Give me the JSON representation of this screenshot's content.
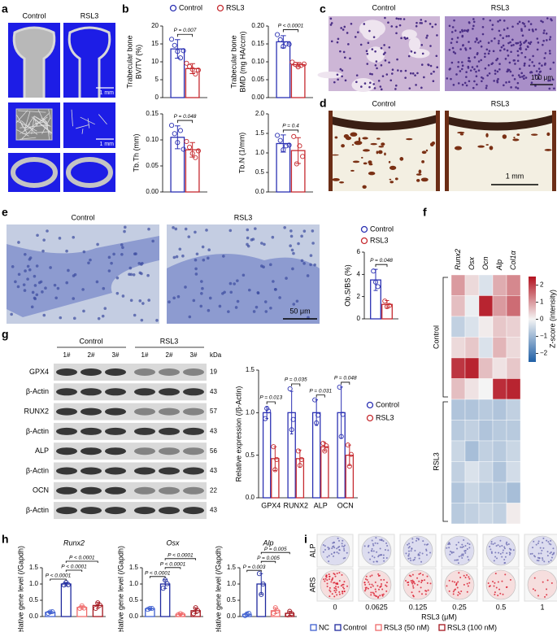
{
  "panels": [
    "a",
    "b",
    "c",
    "d",
    "e",
    "f",
    "g",
    "h",
    "i"
  ],
  "a": {
    "columns": [
      "Control",
      "RSL3"
    ],
    "scale_bars": [
      "1 mm",
      "1 mm"
    ]
  },
  "c": {
    "columns": [
      "Control",
      "RSL3"
    ],
    "scale_bar": "100 μm"
  },
  "d": {
    "columns": [
      "Control",
      "RSL3"
    ],
    "scale_bar": "1 mm"
  },
  "e": {
    "columns": [
      "Control",
      "RSL3"
    ],
    "scale_bar": "50 μm"
  },
  "g_blot": {
    "groups": [
      "Control",
      "RSL3"
    ],
    "lanes": [
      "1#",
      "2#",
      "3#",
      "1#",
      "2#",
      "3#"
    ],
    "kda_label": "kDa",
    "rows": [
      {
        "label": "GPX4",
        "kda": 19
      },
      {
        "label": "β-Actin",
        "kda": 43
      },
      {
        "label": "RUNX2",
        "kda": 57
      },
      {
        "label": "β-Actin",
        "kda": 43
      },
      {
        "label": "ALP",
        "kda": 56
      },
      {
        "label": "β-Actin",
        "kda": 43
      },
      {
        "label": "OCN",
        "kda": 22
      },
      {
        "label": "β-Actin",
        "kda": 43
      }
    ]
  },
  "i": {
    "rows": [
      "ALP",
      "ARS"
    ],
    "concentrations": [
      "0",
      "0.0625",
      "0.125",
      "0.25",
      "0.5",
      "1"
    ],
    "xlabel": "RSL3 (μM)"
  },
  "chart_data": [
    {
      "type": "bar",
      "ylabel": [
        "Trabecular bone",
        "BV/TV (%)"
      ],
      "ylim": [
        0,
        20
      ],
      "yticks": [
        0,
        5,
        10,
        15,
        20
      ],
      "series": [
        {
          "name": "Control",
          "color": "#2b31b3",
          "values": [
            13.6
          ],
          "errors": [
            2.6
          ],
          "points": [
            [
              16.3,
              14.6,
              12.9,
              11.1,
              13.1
            ]
          ]
        },
        {
          "name": "RSL3",
          "color": "#c62a2f",
          "values": [
            8.1
          ],
          "errors": [
            1.4
          ],
          "points": [
            [
              9.6,
              8.7,
              7.9,
              6.6,
              7.7
            ]
          ]
        }
      ],
      "annotations": [
        "P = 0.007"
      ]
    },
    {
      "type": "bar",
      "ylabel": [
        "Trabecular bone",
        "BMD (mg HA/ccm)"
      ],
      "ylim": [
        0,
        0.2
      ],
      "yticks": [
        {
          "value": 0,
          "label": "0.00"
        },
        0.05,
        {
          "value": 0.1,
          "label": "0.10"
        },
        0.15,
        {
          "value": 0.2,
          "label": "0.20"
        }
      ],
      "series": [
        {
          "color": "#2b31b3",
          "values": [
            0.156
          ],
          "errors": [
            0.017
          ],
          "points": [
            [
              0.176,
              0.162,
              0.143,
              0.15,
              0.149
            ]
          ]
        },
        {
          "color": "#c62a2f",
          "values": [
            0.092
          ],
          "errors": [
            0.006
          ],
          "points": [
            [
              0.099,
              0.093,
              0.086,
              0.09,
              0.094
            ]
          ]
        }
      ],
      "annotations": [
        "P < 0.0001"
      ]
    },
    {
      "type": "bar",
      "ylabel": [
        "Tb.Th (mm)"
      ],
      "ylim": [
        0,
        0.15
      ],
      "yticks": [
        {
          "value": 0,
          "label": "0.00"
        },
        0.05,
        {
          "value": 0.1,
          "label": "0.10"
        },
        0.15
      ],
      "series": [
        {
          "color": "#2b31b3",
          "values": [
            0.105
          ],
          "errors": [
            0.022
          ],
          "points": [
            [
              0.128,
              0.112,
              0.095,
              0.118,
              0.082
            ]
          ]
        },
        {
          "color": "#c62a2f",
          "values": [
            0.081
          ],
          "errors": [
            0.014
          ],
          "points": [
            [
              0.097,
              0.086,
              0.074,
              0.066,
              0.079
            ]
          ]
        }
      ],
      "annotations": [
        "P = 0.048"
      ]
    },
    {
      "type": "bar",
      "ylabel": [
        "Tb.N (1/mm)"
      ],
      "ylim": [
        0,
        2
      ],
      "yticks": [
        {
          "value": 0,
          "label": "0.0"
        },
        0.5,
        {
          "value": 1,
          "label": "1.0"
        },
        1.5,
        {
          "value": 2,
          "label": "2.0"
        }
      ],
      "series": [
        {
          "color": "#2b31b3",
          "values": [
            1.24
          ],
          "errors": [
            0.22
          ],
          "points": [
            [
              1.45,
              1.32,
              1.08,
              1.18,
              1.2
            ]
          ]
        },
        {
          "color": "#c62a2f",
          "values": [
            1.06
          ],
          "errors": [
            0.33
          ],
          "points": [
            [
              1.42,
              0.72,
              1.18,
              0.91
            ]
          ]
        }
      ],
      "annotations": [
        "P = 0.4"
      ]
    },
    {
      "type": "bar",
      "ylabel": [
        "Ob.S/BS (%)"
      ],
      "ylim": [
        0,
        6
      ],
      "yticks": [
        0,
        2,
        4,
        6
      ],
      "series": [
        {
          "name": "Control",
          "color": "#2b31b3",
          "values": [
            3.5
          ],
          "errors": [
            0.95
          ],
          "points": [
            [
              4.3,
              3.3,
              2.9
            ]
          ]
        },
        {
          "name": "RSL3",
          "color": "#c62a2f",
          "values": [
            1.3
          ],
          "errors": [
            0.35
          ],
          "points": [
            [
              1.6,
              1.1,
              1.2
            ]
          ]
        }
      ],
      "annotations": [
        "P = 0.048"
      ]
    },
    {
      "type": "heatmap",
      "columns": [
        "Runx2",
        "Osx",
        "Ocn",
        "Alp",
        "Col1α"
      ],
      "groups": [
        {
          "name": "Control",
          "values": [
            [
              1.0,
              0.3,
              -0.3,
              0.8,
              1.2
            ],
            [
              0.6,
              -0.1,
              2.3,
              1.0,
              1.5
            ],
            [
              -0.6,
              -0.3,
              0.1,
              0.5,
              0.4
            ],
            [
              0.3,
              0.5,
              -0.3,
              0.7,
              0.3
            ],
            [
              2.1,
              2.3,
              0.6,
              0.2,
              0.5
            ],
            [
              0.6,
              0.2,
              0.0,
              2.2,
              2.3
            ]
          ]
        },
        {
          "name": "RSL3",
          "values": [
            [
              -0.8,
              -0.8,
              -0.7,
              -0.8,
              -0.6
            ],
            [
              -0.7,
              -0.6,
              -0.8,
              -0.7,
              -0.7
            ],
            [
              -0.5,
              -0.9,
              -0.6,
              -0.7,
              -0.5
            ],
            [
              -0.6,
              -0.3,
              -0.5,
              -0.8,
              -0.4
            ],
            [
              -0.8,
              -0.5,
              -0.7,
              -0.7,
              -0.9
            ],
            [
              -0.7,
              -0.6,
              -0.5,
              -0.6,
              0.1
            ]
          ]
        }
      ],
      "zlim": [
        -2.5,
        2.5
      ],
      "zticks": [
        2,
        1,
        0,
        {
          "value": -1,
          "label": "−1"
        },
        {
          "value": -2,
          "label": "−2"
        }
      ],
      "zlabel": "Z-score (intensity)",
      "colormap": [
        "#1f5fa6",
        "#f4f4f4",
        "#b3121f"
      ]
    },
    {
      "type": "bar",
      "ylabel": [
        "Relative expression (/β-Actin)"
      ],
      "categories": [
        "GPX4",
        "RUNX2",
        "ALP",
        "OCN"
      ],
      "ylim": [
        0,
        1.5
      ],
      "yticks": [
        {
          "value": 0,
          "label": "0.0"
        },
        0.5,
        {
          "value": 1,
          "label": "1.0"
        },
        1.5
      ],
      "series": [
        {
          "name": "Control",
          "color": "#2b31b3",
          "values": [
            1,
            1,
            1,
            1
          ],
          "errors": [
            0.07,
            0.25,
            0.15,
            0.3
          ],
          "points": [
            [
              0.93,
              1.05,
              1.02
            ],
            [
              1.28,
              0.8,
              0.92
            ],
            [
              1.15,
              0.88,
              0.97
            ],
            [
              1.3,
              0.72,
              0.98
            ]
          ]
        },
        {
          "name": "RSL3",
          "color": "#c62a2f",
          "values": [
            0.46,
            0.46,
            0.6,
            0.5
          ],
          "errors": [
            0.14,
            0.1,
            0.05,
            0.12
          ],
          "points": [
            [
              0.6,
              0.33,
              0.45
            ],
            [
              0.55,
              0.38,
              0.45
            ],
            [
              0.64,
              0.55,
              0.61
            ],
            [
              0.62,
              0.37,
              0.51
            ]
          ]
        }
      ],
      "annotations": [
        "P = 0.013",
        "P = 0.035",
        "P = 0.031",
        "P = 0.048"
      ]
    },
    {
      "type": "bar",
      "title": "Runx2",
      "ylabel": [
        "Relative gene level (/Gapdh)"
      ],
      "ylim": [
        0,
        1.5
      ],
      "yticks": [
        {
          "value": 0,
          "label": "0.0"
        },
        0.5,
        {
          "value": 1,
          "label": "1.0"
        },
        1.5
      ],
      "series": [
        {
          "colors": [
            "#4060d0",
            "#1f2a9e",
            "#ef6a6a",
            "#a3161e"
          ],
          "values": [
            0.13,
            1.0,
            0.28,
            0.34
          ],
          "errors": [
            0.03,
            0.05,
            0.05,
            0.09
          ],
          "points": [
            [
              0.1,
              0.14,
              0.15
            ],
            [
              0.97,
              1.05,
              0.98
            ],
            [
              0.25,
              0.33,
              0.26
            ],
            [
              0.25,
              0.42,
              0.35
            ]
          ]
        }
      ],
      "annotations": [
        "P < 0.0001",
        "P < 0.0001",
        "P < 0.0001"
      ],
      "legend": [
        {
          "name": "NC",
          "color": "#4060d0"
        },
        {
          "name": "Control",
          "color": "#1f2a9e"
        },
        {
          "name": "RSL3 (50 nM)",
          "color": "#ef6a6a"
        },
        {
          "name": "RSL3 (100 nM)",
          "color": "#a3161e"
        }
      ]
    },
    {
      "type": "bar",
      "title": "Osx",
      "ylabel": [
        "Relative gene level (/Gapdh)"
      ],
      "ylim": [
        0,
        1.5
      ],
      "yticks": [
        {
          "value": 0,
          "label": "0.0"
        },
        0.5,
        {
          "value": 1,
          "label": "1.0"
        },
        1.5
      ],
      "series": [
        {
          "colors": [
            "#4060d0",
            "#1f2a9e",
            "#ef6a6a",
            "#a3161e"
          ],
          "values": [
            0.24,
            1.0,
            0.07,
            0.18
          ],
          "errors": [
            0.02,
            0.13,
            0.02,
            0.09
          ],
          "points": [
            [
              0.22,
              0.25,
              0.25
            ],
            [
              0.87,
              1.12,
              1.01
            ],
            [
              0.06,
              0.09,
              0.06
            ],
            [
              0.09,
              0.27,
              0.18
            ]
          ]
        }
      ],
      "annotations": [
        "P < 0.0001",
        "P < 0.0001",
        "P < 0.0001"
      ]
    },
    {
      "type": "bar",
      "title": "Alp",
      "ylabel": [
        "Relative gene level (/Gapdh)"
      ],
      "ylim": [
        0,
        1.5
      ],
      "yticks": [
        {
          "value": 0,
          "label": "0.0"
        },
        0.5,
        {
          "value": 1,
          "label": "1.0"
        },
        1.5
      ],
      "series": [
        {
          "colors": [
            "#4060d0",
            "#1f2a9e",
            "#ef6a6a",
            "#a3161e"
          ],
          "values": [
            0.07,
            1.0,
            0.18,
            0.1
          ],
          "errors": [
            0.05,
            0.32,
            0.09,
            0.06
          ],
          "points": [
            [
              0.03,
              0.08,
              0.1
            ],
            [
              1.32,
              0.68,
              1.0
            ],
            [
              0.1,
              0.27,
              0.17
            ],
            [
              0.05,
              0.16,
              0.09
            ]
          ]
        }
      ],
      "annotations": [
        "P = 0.003",
        "P = 0.005",
        "P = 0.005"
      ]
    }
  ]
}
